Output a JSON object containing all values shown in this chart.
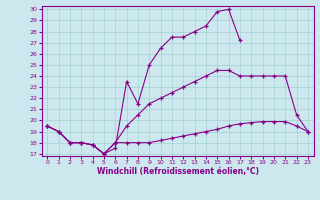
{
  "xlabel": "Windchill (Refroidissement éolien,°C)",
  "bg_color": "#cce8ee",
  "line_color": "#880088",
  "xlim": [
    -0.5,
    23.5
  ],
  "ylim": [
    16.8,
    30.3
  ],
  "xticks": [
    0,
    1,
    2,
    3,
    4,
    5,
    6,
    7,
    8,
    9,
    10,
    11,
    12,
    13,
    14,
    15,
    16,
    17,
    18,
    19,
    20,
    21,
    22,
    23
  ],
  "yticks": [
    17,
    18,
    19,
    20,
    21,
    22,
    23,
    24,
    25,
    26,
    27,
    28,
    29,
    30
  ],
  "line1_x": [
    0,
    1,
    2,
    3,
    4,
    5,
    6,
    7,
    8,
    9,
    10,
    11,
    12,
    13,
    14,
    15,
    16,
    17
  ],
  "line1_y": [
    19.5,
    19.0,
    18.0,
    18.0,
    17.8,
    17.0,
    17.5,
    23.5,
    21.5,
    25.0,
    26.5,
    27.5,
    27.5,
    28.0,
    28.5,
    29.8,
    30.0,
    27.2
  ],
  "line2_x": [
    0,
    1,
    2,
    3,
    4,
    5,
    6,
    7,
    8,
    9,
    10,
    11,
    12,
    13,
    14,
    15,
    16,
    17,
    18,
    19,
    20,
    21,
    22,
    23
  ],
  "line2_y": [
    19.5,
    19.0,
    18.0,
    18.0,
    17.8,
    17.0,
    18.0,
    19.5,
    20.5,
    21.5,
    22.0,
    22.5,
    23.0,
    23.5,
    24.0,
    24.5,
    24.5,
    24.0,
    24.0,
    24.0,
    24.0,
    24.0,
    20.5,
    19.0
  ],
  "line3_x": [
    0,
    1,
    2,
    3,
    4,
    5,
    6,
    7,
    8,
    9,
    10,
    11,
    12,
    13,
    14,
    15,
    16,
    17,
    18,
    19,
    20,
    21,
    22,
    23
  ],
  "line3_y": [
    19.5,
    19.0,
    18.0,
    18.0,
    17.8,
    17.0,
    18.0,
    18.0,
    18.0,
    18.0,
    18.2,
    18.4,
    18.6,
    18.8,
    19.0,
    19.2,
    19.5,
    19.7,
    19.8,
    19.9,
    19.9,
    19.9,
    19.5,
    19.0
  ]
}
